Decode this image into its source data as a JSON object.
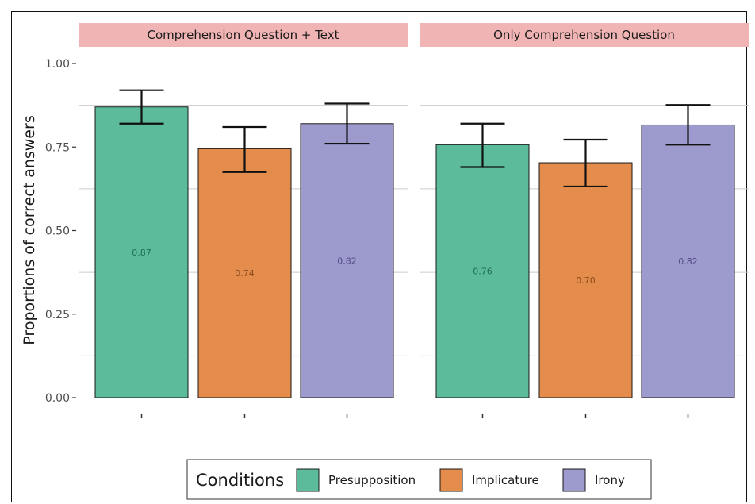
{
  "chart_data": {
    "type": "bar",
    "ylabel": "Proportions of correct answers",
    "ylim": [
      0,
      1
    ],
    "yticks": [
      "0.00",
      "0.25",
      "0.50",
      "0.75",
      "1.00"
    ],
    "grid": true,
    "legend": {
      "title": "Conditions",
      "placement": "bottom",
      "entries": [
        {
          "name": "Presupposition",
          "color": "#5bbb9b"
        },
        {
          "name": "Implicature",
          "color": "#e38c4c"
        },
        {
          "name": "Irony",
          "color": "#9d9acd"
        }
      ]
    },
    "label_colors": [
      "#1e6e55",
      "#8a4a1a",
      "#514d85"
    ],
    "panels": [
      {
        "strip": "Comprehension Question + Text",
        "bars": [
          {
            "condition": "Presupposition",
            "value": 0.87,
            "label": "0.87",
            "err_low": 0.82,
            "err_high": 0.92
          },
          {
            "condition": "Implicature",
            "value": 0.745,
            "label": "0.74",
            "err_low": 0.675,
            "err_high": 0.81
          },
          {
            "condition": "Irony",
            "value": 0.82,
            "label": "0.82",
            "err_low": 0.76,
            "err_high": 0.88
          }
        ]
      },
      {
        "strip": "Only Comprehension Question",
        "bars": [
          {
            "condition": "Presupposition",
            "value": 0.757,
            "label": "0.76",
            "err_low": 0.69,
            "err_high": 0.82
          },
          {
            "condition": "Implicature",
            "value": 0.703,
            "label": "0.70",
            "err_low": 0.632,
            "err_high": 0.772
          },
          {
            "condition": "Irony",
            "value": 0.816,
            "label": "0.82",
            "err_low": 0.757,
            "err_high": 0.876
          }
        ]
      }
    ]
  },
  "colors": {
    "strip_fill": "#f0b4b4",
    "grid": "#cccccc",
    "bar_stroke": "#1a1a1a"
  }
}
